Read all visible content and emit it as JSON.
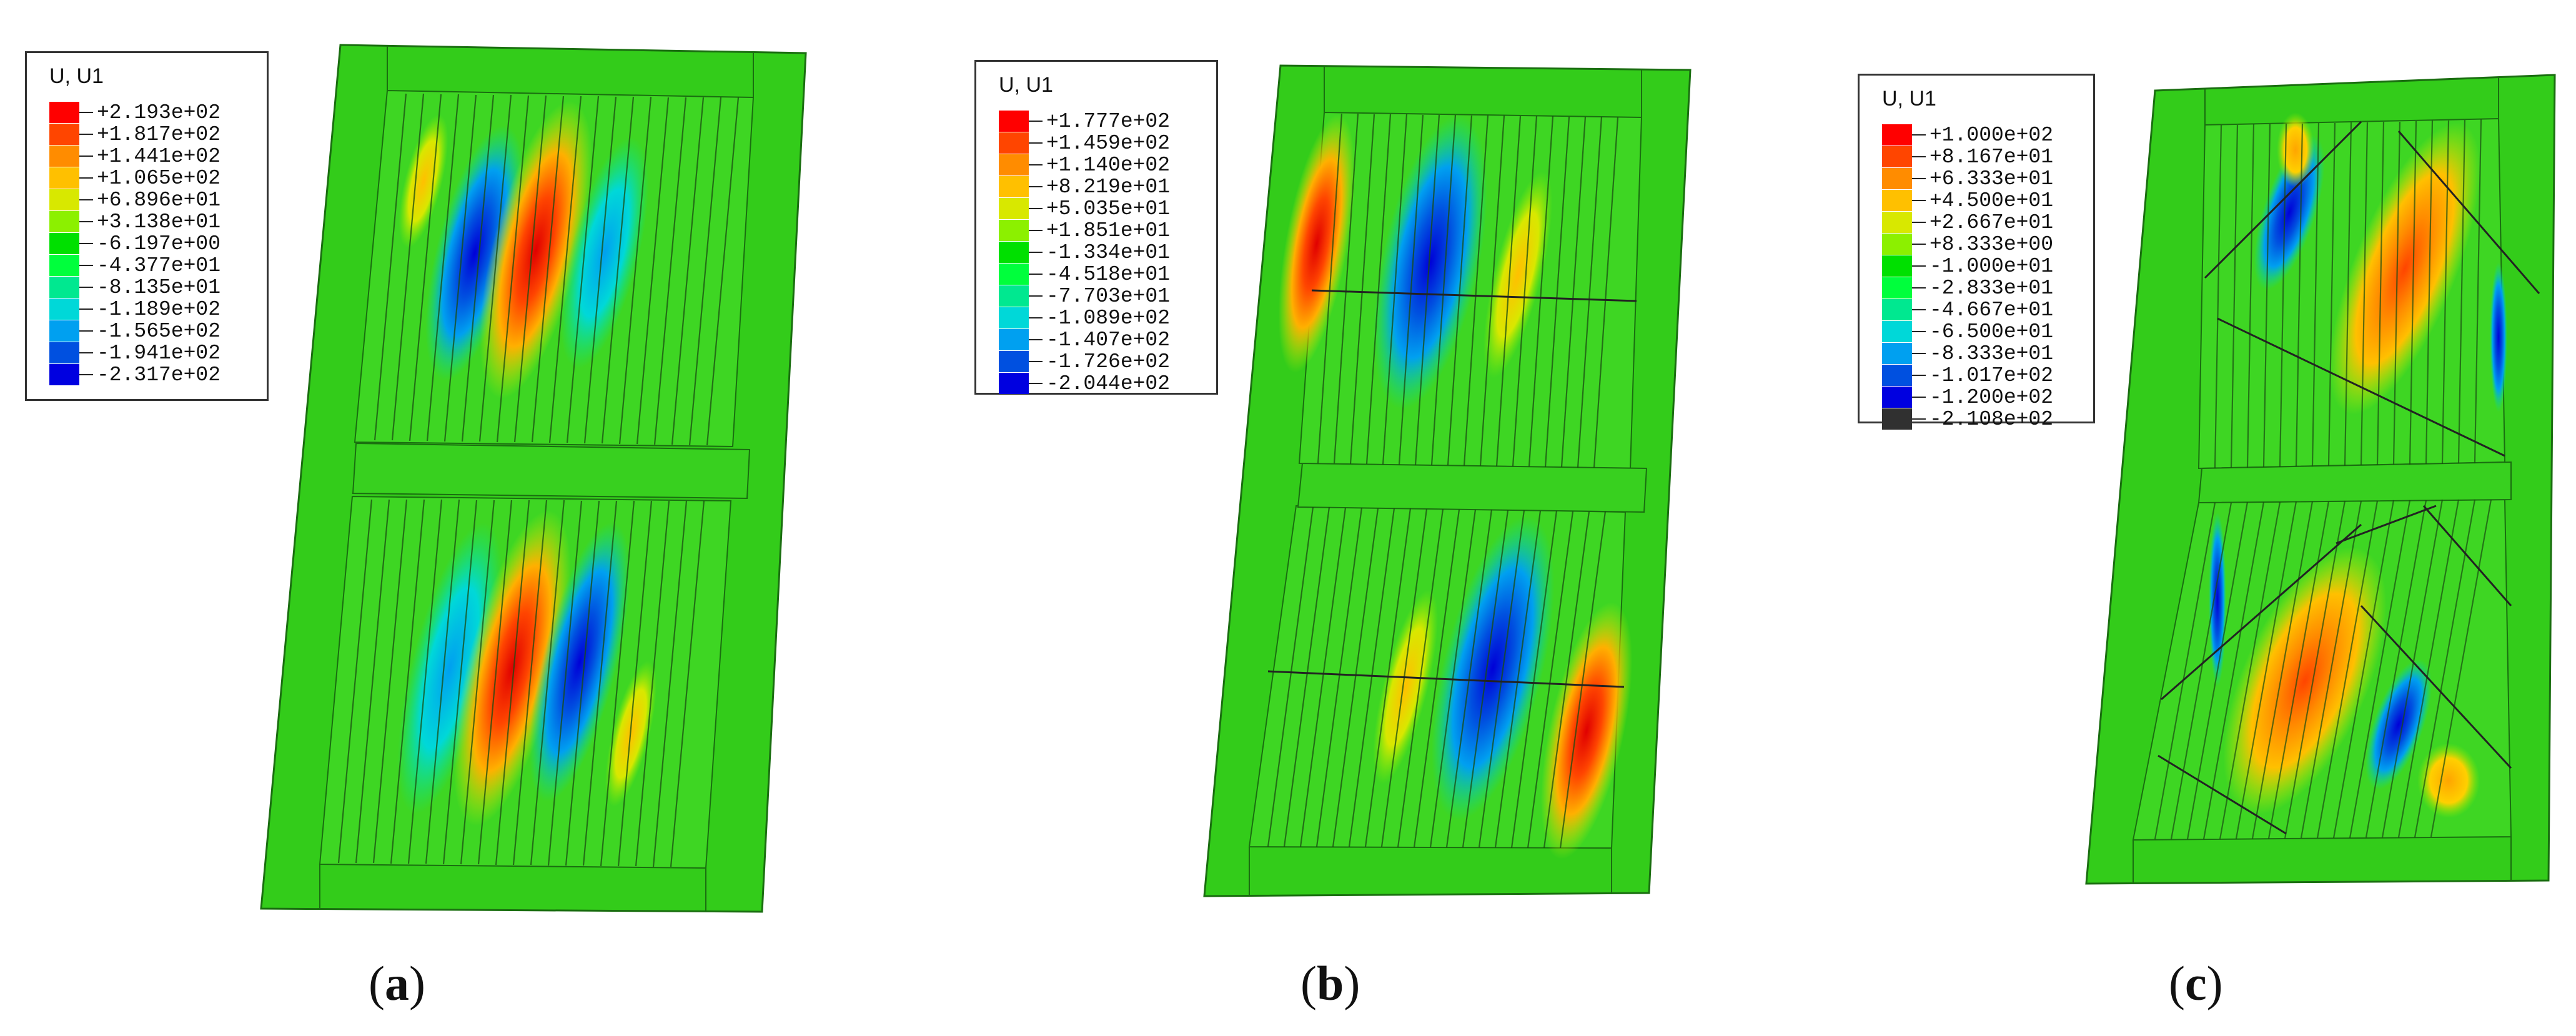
{
  "figure": {
    "panels": [
      {
        "id": "a",
        "caption_letter": "a",
        "legend_title": "U, U1",
        "legend_values": [
          "+2.193e+02",
          "+1.817e+02",
          "+1.441e+02",
          "+1.065e+02",
          "+6.896e+01",
          "+3.138e+01",
          "-6.197e+00",
          "-4.377e+01",
          "-8.135e+01",
          "-1.189e+02",
          "-1.565e+02",
          "-1.941e+02",
          "-2.317e+02"
        ],
        "legend_colors": [
          "#ff0000",
          "#ff4500",
          "#ff8c00",
          "#ffc000",
          "#d8e800",
          "#8cf000",
          "#00e000",
          "#00ff3c",
          "#00e890",
          "#00d8d8",
          "#00a0f0",
          "#0050e0",
          "#0000e0"
        ]
      },
      {
        "id": "b",
        "caption_letter": "b",
        "legend_title": "U, U1",
        "legend_values": [
          "+1.777e+02",
          "+1.459e+02",
          "+1.140e+02",
          "+8.219e+01",
          "+5.035e+01",
          "+1.851e+01",
          "-1.334e+01",
          "-4.518e+01",
          "-7.703e+01",
          "-1.089e+02",
          "-1.407e+02",
          "-1.726e+02",
          "-2.044e+02"
        ],
        "legend_colors": [
          "#ff0000",
          "#ff4500",
          "#ff8c00",
          "#ffc000",
          "#d8e800",
          "#8cf000",
          "#00e000",
          "#00ff3c",
          "#00e890",
          "#00d8d8",
          "#00a0f0",
          "#0050e0",
          "#0000e0"
        ]
      },
      {
        "id": "c",
        "caption_letter": "c",
        "legend_title": "U, U1",
        "legend_values": [
          "+1.000e+02",
          "+8.167e+01",
          "+6.333e+01",
          "+4.500e+01",
          "+2.667e+01",
          "+8.333e+00",
          "-1.000e+01",
          "-2.833e+01",
          "-4.667e+01",
          "-6.500e+01",
          "-8.333e+01",
          "-1.017e+02",
          "-1.200e+02",
          "-2.108e+02"
        ],
        "legend_colors": [
          "#ff0000",
          "#ff4500",
          "#ff8c00",
          "#ffc000",
          "#d8e800",
          "#8cf000",
          "#00e000",
          "#00ff3c",
          "#00e890",
          "#00d8d8",
          "#00a0f0",
          "#0050e0",
          "#0000e0",
          "#303030"
        ]
      }
    ]
  }
}
